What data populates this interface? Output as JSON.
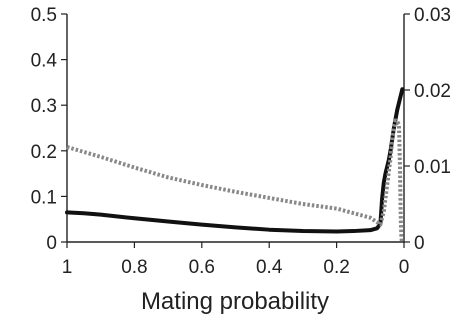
{
  "chart_data": {
    "type": "line",
    "title": "",
    "xlabel": "Mating probability",
    "ylabel": "",
    "y2label": "",
    "x_reversed": true,
    "xlim": [
      1,
      0
    ],
    "ylim": [
      0,
      0.5
    ],
    "y2lim": [
      0,
      0.03
    ],
    "grid": false,
    "legend": "none",
    "xticks": [
      1,
      0.8,
      0.6,
      0.4,
      0.2,
      0
    ],
    "xtick_labels": [
      "1",
      "0.8",
      "0.6",
      "0.4",
      "0.2",
      "0"
    ],
    "yticks": [
      0,
      0.1,
      0.2,
      0.3,
      0.4,
      0.5
    ],
    "ytick_labels": [
      "0",
      "0.1",
      "0.2",
      "0.3",
      "0.4",
      "0.5"
    ],
    "y2ticks": [
      0,
      0.01,
      0.02,
      0.03
    ],
    "y2tick_labels": [
      "0",
      "0.01",
      "0.02",
      "0.03"
    ],
    "series": [
      {
        "axis": "left",
        "style": "solid",
        "color": "#111111",
        "x": [
          1,
          0.95,
          0.9,
          0.8,
          0.7,
          0.6,
          0.5,
          0.4,
          0.3,
          0.2,
          0.15,
          0.1,
          0.08,
          0.07,
          0.065,
          0.06,
          0.055,
          0.05,
          0.045,
          0.04,
          0.035,
          0.03,
          0.025,
          0.02,
          0.015,
          0.01,
          0.005
        ],
        "y": [
          0.065,
          0.063,
          0.06,
          0.052,
          0.045,
          0.038,
          0.032,
          0.027,
          0.024,
          0.023,
          0.024,
          0.026,
          0.03,
          0.04,
          0.095,
          0.13,
          0.15,
          0.165,
          0.18,
          0.2,
          0.225,
          0.25,
          0.27,
          0.29,
          0.305,
          0.32,
          0.335
        ]
      },
      {
        "axis": "right",
        "style": "dotted",
        "color": "#888888",
        "x": [
          1,
          0.9,
          0.8,
          0.7,
          0.6,
          0.5,
          0.4,
          0.3,
          0.2,
          0.15,
          0.1,
          0.08,
          0.07,
          0.06,
          0.05,
          0.04,
          0.035,
          0.03,
          0.025,
          0.02,
          0.015,
          0.012,
          0.01,
          0.009,
          0.008,
          0.007,
          0.006
        ],
        "y": [
          0.0125,
          0.0112,
          0.0098,
          0.0085,
          0.0075,
          0.0066,
          0.0058,
          0.005,
          0.0044,
          0.0038,
          0.0032,
          0.0026,
          0.0023,
          0.004,
          0.0075,
          0.011,
          0.0135,
          0.015,
          0.016,
          0.0158,
          0.0155,
          0.01,
          0.004,
          0.002,
          0.001,
          0.0003,
          0
        ]
      }
    ]
  }
}
